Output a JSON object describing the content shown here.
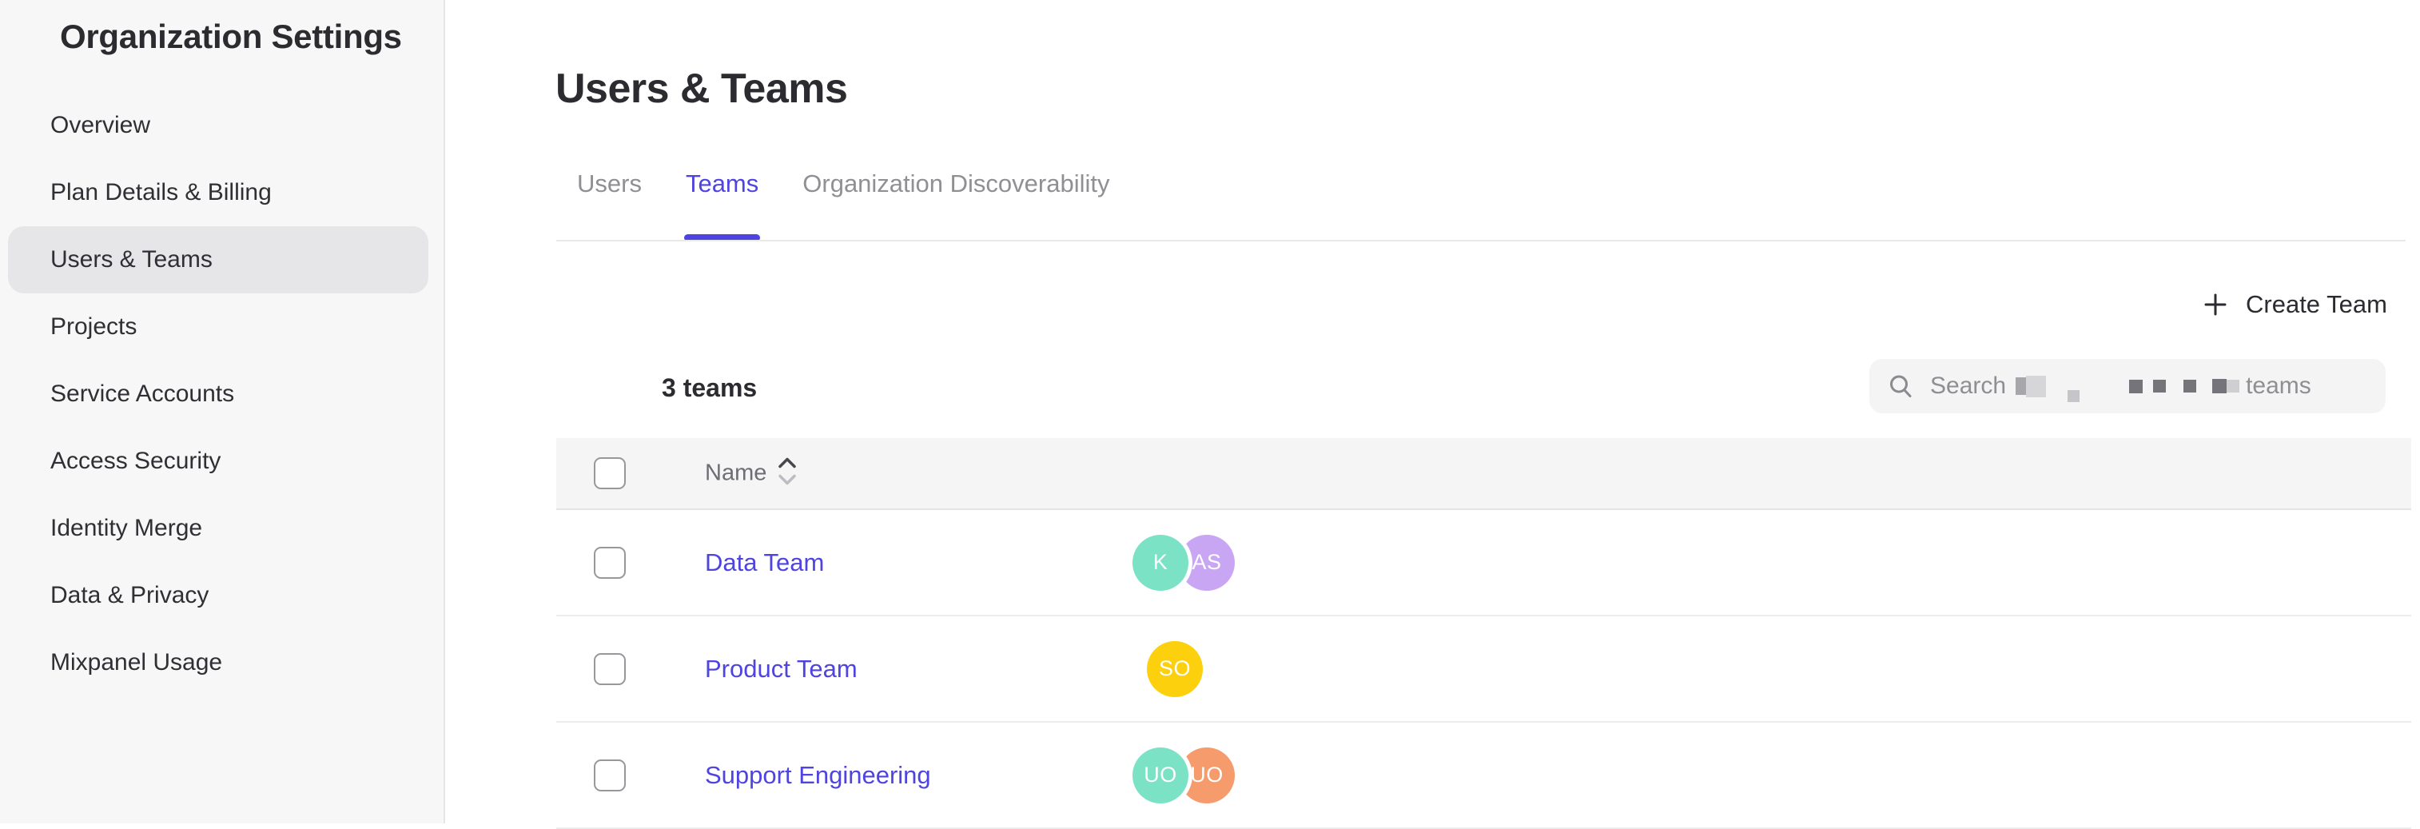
{
  "colors": {
    "accent": "#4f44e0"
  },
  "sidebar": {
    "title": "Organization Settings",
    "items": [
      {
        "label": "Overview",
        "active": false
      },
      {
        "label": "Plan Details & Billing",
        "active": false
      },
      {
        "label": "Users & Teams",
        "active": true
      },
      {
        "label": "Projects",
        "active": false
      },
      {
        "label": "Service Accounts",
        "active": false
      },
      {
        "label": "Access Security",
        "active": false
      },
      {
        "label": "Identity Merge",
        "active": false
      },
      {
        "label": "Data & Privacy",
        "active": false
      },
      {
        "label": "Mixpanel Usage",
        "active": false
      }
    ]
  },
  "header": {
    "title": "Users & Teams"
  },
  "tabs": [
    {
      "label": "Users",
      "active": false
    },
    {
      "label": "Teams",
      "active": true
    },
    {
      "label": "Organization Discoverability",
      "active": false
    }
  ],
  "toolbar": {
    "create_team_label": "Create Team",
    "plus_icon": "plus",
    "teams_count_label": "3 teams"
  },
  "search": {
    "icon": "magnifying-glass",
    "placeholder_prefix": "Search",
    "placeholder_suffix": "teams",
    "redacted_middle": true
  },
  "table": {
    "name_header": "Name",
    "sort_icon": "up-down-chevrons",
    "rows": [
      {
        "name": "Data Team",
        "avatars": [
          {
            "initials": "K",
            "color": "#7be2c6"
          },
          {
            "initials": "AS",
            "color": "#c9a6f3"
          }
        ]
      },
      {
        "name": "Product Team",
        "avatars": [
          {
            "initials": "SO",
            "color": "#fdd00d"
          }
        ]
      },
      {
        "name": "Support Engineering",
        "avatars": [
          {
            "initials": "UO",
            "color": "#7be2c6"
          },
          {
            "initials": "UO",
            "color": "#f69b6c"
          }
        ]
      }
    ]
  }
}
